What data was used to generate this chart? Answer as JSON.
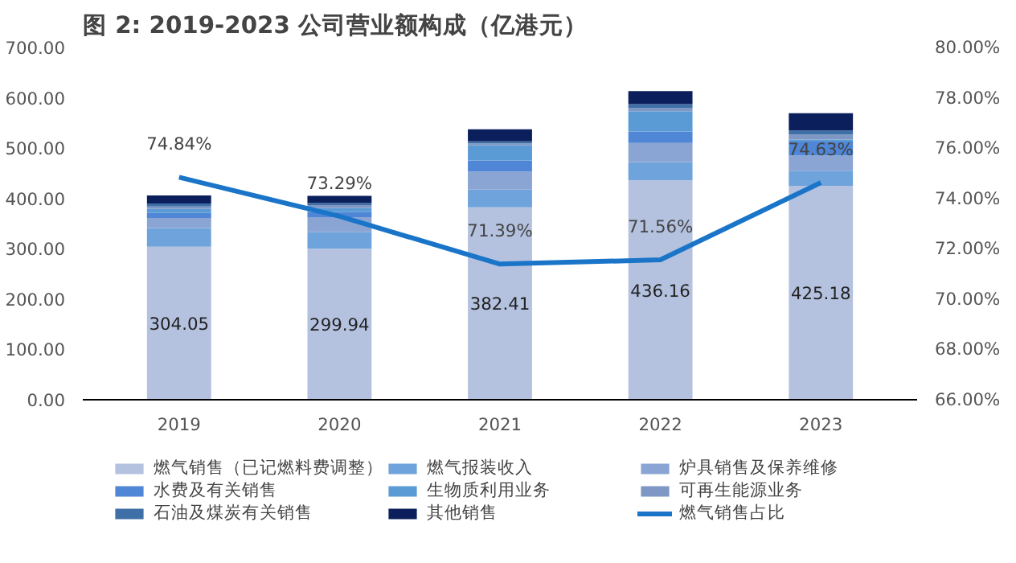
{
  "chart_data": {
    "type": "bar",
    "stacked": true,
    "title": "图 2:  2019-2023 公司营业额构成（亿港元）",
    "categories": [
      "2019",
      "2020",
      "2021",
      "2022",
      "2023"
    ],
    "ylim": [
      0,
      700
    ],
    "yticks": [
      {
        "value": 0,
        "label": "0.00"
      },
      {
        "value": 100,
        "label": "100.00"
      },
      {
        "value": 200,
        "label": "200.00"
      },
      {
        "value": 300,
        "label": "300.00"
      },
      {
        "value": 400,
        "label": "400.00"
      },
      {
        "value": 500,
        "label": "500.00"
      },
      {
        "value": 600,
        "label": "600.00"
      },
      {
        "value": 700,
        "label": "700.00"
      }
    ],
    "y2lim": [
      66,
      80
    ],
    "y2ticks": [
      {
        "value": 66,
        "label": "66.00%"
      },
      {
        "value": 68,
        "label": "68.00%"
      },
      {
        "value": 70,
        "label": "70.00%"
      },
      {
        "value": 72,
        "label": "72.00%"
      },
      {
        "value": 74,
        "label": "74.00%"
      },
      {
        "value": 76,
        "label": "76.00%"
      },
      {
        "value": 78,
        "label": "78.00%"
      },
      {
        "value": 80,
        "label": "80.00%"
      }
    ],
    "grid": false,
    "legend": "bottom",
    "series": [
      {
        "name": "燃气销售（已记燃料费调整）",
        "color": "#b4c2e0",
        "values": [
          304.05,
          299.94,
          382.41,
          436.16,
          425.18
        ],
        "value_labels": [
          "304.05",
          "299.94",
          "382.41",
          "436.16",
          "425.18"
        ]
      },
      {
        "name": "燃气报装收入",
        "color": "#6fa3db",
        "values": [
          37,
          33,
          35,
          36,
          30
        ]
      },
      {
        "name": "炉具销售及保养维修",
        "color": "#8aa5d3",
        "values": [
          20,
          30,
          36,
          38,
          30
        ]
      },
      {
        "name": "水费及有关销售",
        "color": "#4f86d6",
        "values": [
          10,
          10,
          22,
          23,
          28
        ]
      },
      {
        "name": "生物质利用业务",
        "color": "#5b9bd5",
        "values": [
          8,
          8,
          30,
          40,
          4
        ]
      },
      {
        "name": "可再生能源业务",
        "color": "#7f97c4",
        "values": [
          5,
          6,
          4,
          6,
          10
        ]
      },
      {
        "name": "石油及煤炭有关销售",
        "color": "#3e6fa6",
        "values": [
          6,
          4,
          4,
          8,
          8
        ]
      },
      {
        "name": "其他销售",
        "color": "#0b1f5c",
        "values": [
          16,
          14,
          24,
          26,
          34
        ]
      },
      {
        "name": "燃气销售占比",
        "type": "line",
        "axis": "y2",
        "color": "#1a75c9",
        "values": [
          74.84,
          73.29,
          71.39,
          71.56,
          74.63
        ],
        "value_labels": [
          "74.84%",
          "73.29%",
          "71.39%",
          "71.56%",
          "74.63%"
        ]
      }
    ]
  }
}
